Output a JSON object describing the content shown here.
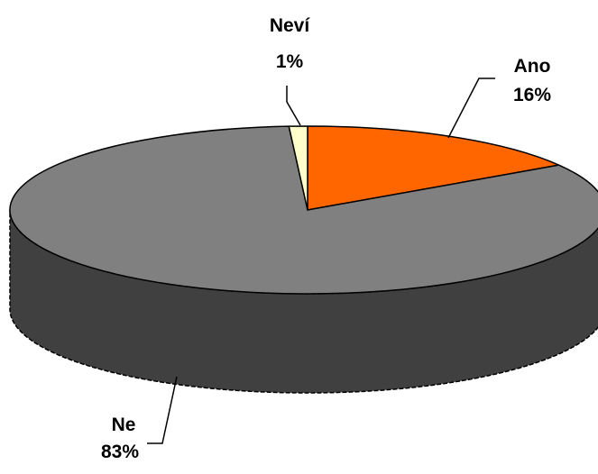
{
  "chart_data": {
    "type": "pie",
    "three_d": true,
    "legend": "none",
    "slices": [
      {
        "name": "Ano",
        "value": 16,
        "value_label": "16%",
        "color": "#ff6600"
      },
      {
        "name": "Ne",
        "value": 83,
        "value_label": "83%",
        "color": "#808080"
      },
      {
        "name": "Neví",
        "value": 1,
        "value_label": "1%",
        "color": "#ffffcc"
      }
    ],
    "side_color": "#404040"
  }
}
